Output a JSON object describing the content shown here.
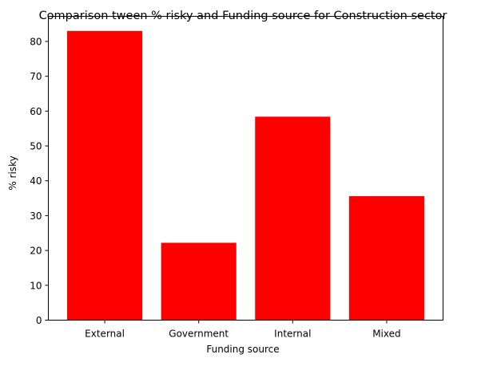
{
  "chart_data": {
    "type": "bar",
    "title": "Comparison tween % risky and Funding source for Construction sector",
    "xlabel": "Funding source",
    "ylabel": "% risky",
    "categories": [
      "External",
      "Government",
      "Internal",
      "Mixed"
    ],
    "values": [
      83,
      22.2,
      58.4,
      35.6
    ],
    "ylim": [
      0,
      87.2
    ],
    "yticks": [
      0,
      10,
      20,
      30,
      40,
      50,
      60,
      70,
      80
    ],
    "bar_color": "#ff0000",
    "grid": false,
    "legend": "none"
  }
}
